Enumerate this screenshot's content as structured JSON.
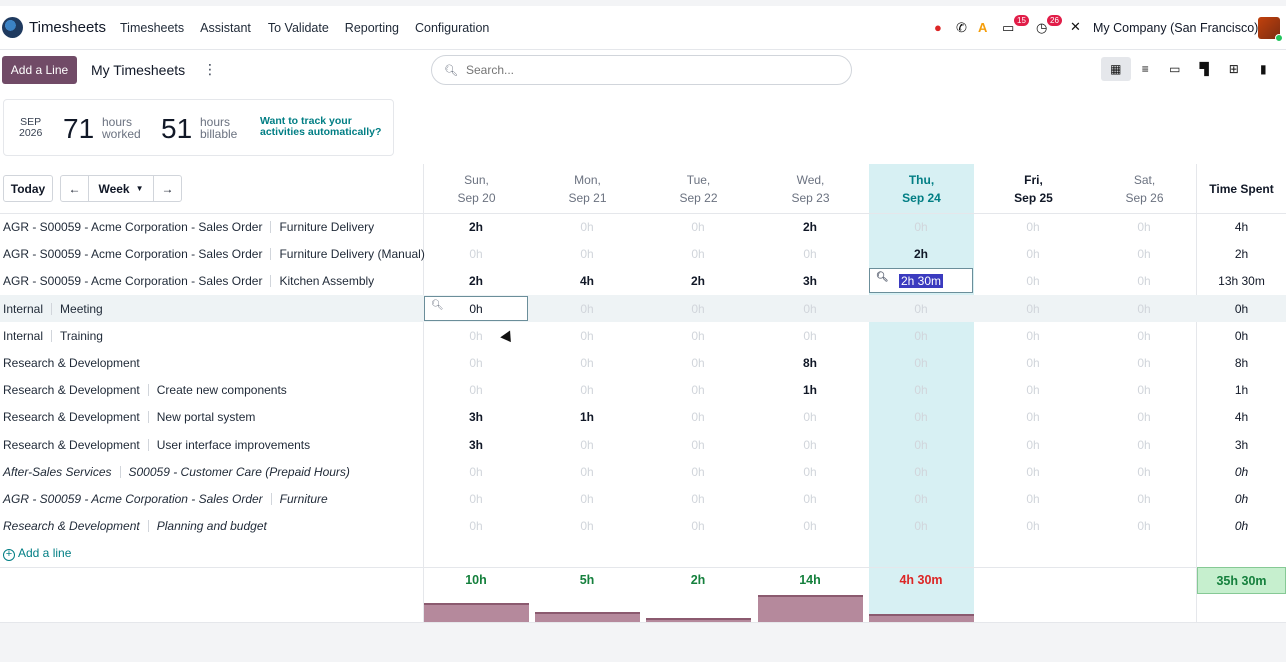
{
  "app": {
    "title": "Timesheets",
    "menu": [
      "Timesheets",
      "Assistant",
      "To Validate",
      "Reporting",
      "Configuration"
    ],
    "company": "My Company (San Francisco)",
    "badges": {
      "messages": "15",
      "activities": "26"
    }
  },
  "controls": {
    "add_line_button": "Add a Line",
    "view_title": "My Timesheets",
    "search_placeholder": "Search...",
    "today_button": "Today",
    "range": "Week"
  },
  "stats": {
    "month": "SEP",
    "year": "2026",
    "worked_value": "71",
    "worked_label_1": "hours",
    "worked_label_2": "worked",
    "billable_value": "51",
    "billable_label_1": "hours",
    "billable_label_2": "billable",
    "track_link_1": "Want to track your",
    "track_link_2": "activities automatically?"
  },
  "columns": [
    {
      "day": "Sun,",
      "date": "Sep 20"
    },
    {
      "day": "Mon,",
      "date": "Sep 21"
    },
    {
      "day": "Tue,",
      "date": "Sep 22"
    },
    {
      "day": "Wed,",
      "date": "Sep 23"
    },
    {
      "day": "Thu,",
      "date": "Sep 24"
    },
    {
      "day": "Fri,",
      "date": "Sep 25"
    },
    {
      "day": "Sat,",
      "date": "Sep 26"
    }
  ],
  "time_spent_header": "Time Spent",
  "rows": [
    {
      "project": "AGR - S00059 - Acme Corporation - Sales Order",
      "task": "Furniture Delivery",
      "cells": [
        "2h",
        "0h",
        "0h",
        "2h",
        "0h",
        "0h",
        "0h"
      ],
      "total": "4h"
    },
    {
      "project": "AGR - S00059 - Acme Corporation - Sales Order",
      "task": "Furniture Delivery (Manual)",
      "cells": [
        "0h",
        "0h",
        "0h",
        "0h",
        "2h",
        "0h",
        "0h"
      ],
      "total": "2h"
    },
    {
      "project": "AGR - S00059 - Acme Corporation - Sales Order",
      "task": "Kitchen Assembly",
      "cells": [
        "2h",
        "4h",
        "2h",
        "3h",
        "2h 30m",
        "0h",
        "0h"
      ],
      "total": "13h 30m"
    },
    {
      "project": "Internal",
      "task": "Meeting",
      "cells": [
        "0h",
        "0h",
        "0h",
        "0h",
        "0h",
        "0h",
        "0h"
      ],
      "total": "0h"
    },
    {
      "project": "Internal",
      "task": "Training",
      "cells": [
        "0h",
        "0h",
        "0h",
        "0h",
        "0h",
        "0h",
        "0h"
      ],
      "total": "0h"
    },
    {
      "project": "Research & Development",
      "task": "",
      "cells": [
        "0h",
        "0h",
        "0h",
        "8h",
        "0h",
        "0h",
        "0h"
      ],
      "total": "8h"
    },
    {
      "project": "Research & Development",
      "task": "Create new components",
      "cells": [
        "0h",
        "0h",
        "0h",
        "1h",
        "0h",
        "0h",
        "0h"
      ],
      "total": "1h"
    },
    {
      "project": "Research & Development",
      "task": "New portal system",
      "cells": [
        "3h",
        "1h",
        "0h",
        "0h",
        "0h",
        "0h",
        "0h"
      ],
      "total": "4h"
    },
    {
      "project": "Research & Development",
      "task": "User interface improvements",
      "cells": [
        "3h",
        "0h",
        "0h",
        "0h",
        "0h",
        "0h",
        "0h"
      ],
      "total": "3h"
    },
    {
      "project": "After-Sales Services",
      "task": "S00059 - Customer Care (Prepaid Hours)",
      "cells": [
        "0h",
        "0h",
        "0h",
        "0h",
        "0h",
        "0h",
        "0h"
      ],
      "total": "0h",
      "italic": true
    },
    {
      "project": "AGR - S00059 - Acme Corporation - Sales Order",
      "task": "Furniture",
      "cells": [
        "0h",
        "0h",
        "0h",
        "0h",
        "0h",
        "0h",
        "0h"
      ],
      "total": "0h",
      "italic": true
    },
    {
      "project": "Research & Development",
      "task": "Planning and budget",
      "cells": [
        "0h",
        "0h",
        "0h",
        "0h",
        "0h",
        "0h",
        "0h"
      ],
      "total": "0h",
      "italic": true
    }
  ],
  "add_line_link": "Add a line",
  "day_totals": [
    "10h",
    "5h",
    "2h",
    "14h",
    "4h 30m",
    "",
    ""
  ],
  "grand_total": "35h 30m",
  "bar_levels": [
    0.48,
    0.24,
    0.1,
    0.68,
    0.21
  ],
  "colors": {
    "accent": "#714b67",
    "link": "#017e84",
    "today": "#d7f0f3",
    "ok": "#15803d",
    "over": "#dc2626"
  }
}
